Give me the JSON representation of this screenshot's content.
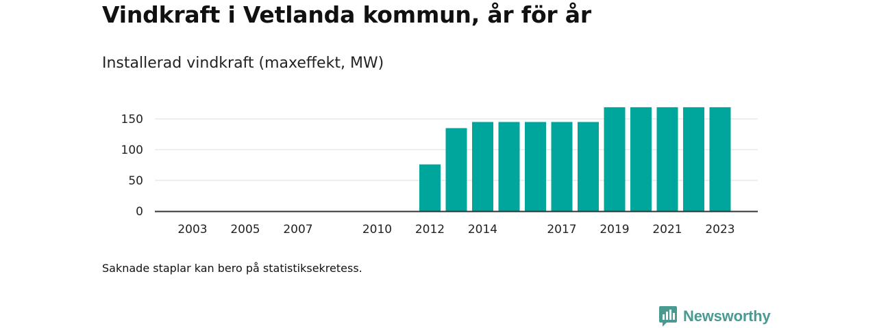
{
  "title": "Vindkraft i Vetlanda kommun, år för år",
  "subtitle": "Installerad vindkraft (maxeffekt, MW)",
  "note": "Saknade staplar kan bero på statistiksekretess.",
  "brand": {
    "name": "Newsworthy",
    "color": "#4a9a92",
    "icon": "newsworthy-logo-icon"
  },
  "chart_data": {
    "type": "bar",
    "color": "#00a69c",
    "categories": [
      "2003",
      "2004",
      "2005",
      "2006",
      "2007",
      "2008",
      "2009",
      "2010",
      "2011",
      "2012",
      "2013",
      "2014",
      "2015",
      "2016",
      "2017",
      "2018",
      "2019",
      "2020",
      "2021",
      "2022",
      "2023"
    ],
    "values": [
      null,
      null,
      null,
      null,
      null,
      null,
      null,
      null,
      null,
      76,
      135,
      145,
      145,
      145,
      145,
      145,
      169,
      169,
      169,
      169,
      169
    ],
    "x_tick_labels": [
      "2003",
      "2005",
      "2007",
      "2010",
      "2012",
      "2014",
      "2017",
      "2019",
      "2021",
      "2023"
    ],
    "y_ticks": [
      0,
      50,
      100,
      150
    ],
    "ylim": [
      0,
      175
    ],
    "grid": true,
    "legend": "none"
  }
}
